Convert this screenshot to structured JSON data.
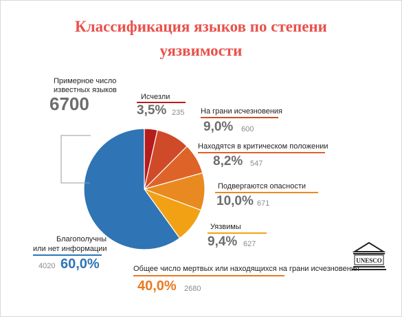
{
  "title_line1": "Классификация языков по степени",
  "title_line2": "уязвимости",
  "total_label_line1": "Примерное число",
  "total_label_line2": "известных языков",
  "total_value": "6700",
  "unesco_logo_text": "UNESCO",
  "chart_data": {
    "type": "pie",
    "title": "Классификация языков по степени уязвимости",
    "slices": [
      {
        "label": "Исчезли",
        "percent_text": "3,5%",
        "count_text": "235",
        "value": 3.5,
        "color": "#b71c1c"
      },
      {
        "label": "На грани исчезновения",
        "percent_text": "9,0%",
        "count_text": "600",
        "value": 9.0,
        "color": "#cf4a28"
      },
      {
        "label": "Находятся в критическом положении",
        "percent_text": "8,2%",
        "count_text": "547",
        "value": 8.2,
        "color": "#de6328"
      },
      {
        "label": "Подвергаются опасности",
        "percent_text": "10,0%",
        "count_text": "671",
        "value": 10.0,
        "color": "#e98a20"
      },
      {
        "label": "Уязвимы",
        "percent_text": "9,4%",
        "count_text": "627",
        "value": 9.4,
        "color": "#f2a115"
      },
      {
        "label_line1": "Благополучны",
        "label_line2": "или нет информации",
        "percent_text": "60,0%",
        "count_text": "4020",
        "value": 60.0,
        "color": "#2f74b5"
      }
    ],
    "summary": {
      "label": "Общее число мертвых или находящихся на грани исчезновения",
      "percent_text": "40,0%",
      "count_text": "2680",
      "value": 40.0
    }
  }
}
